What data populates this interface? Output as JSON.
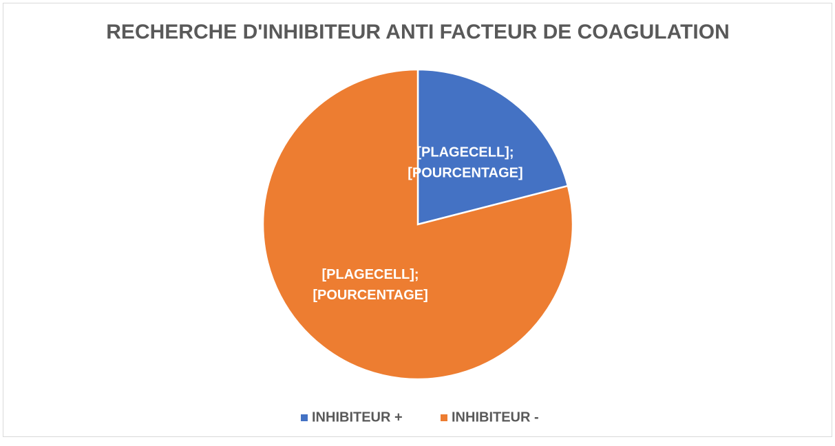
{
  "chart_data": {
    "type": "pie",
    "title": "RECHERCHE D'INHIBITEUR ANTI FACTEUR DE COAGULATION",
    "categories": [
      "INHIBITEUR +",
      "INHIBITEUR -"
    ],
    "values": [
      21,
      79
    ],
    "value_labels": [
      [
        "[PLAGECELL];",
        "[POURCENTAGE]"
      ],
      [
        "[PLAGECELL];",
        "[POURCENTAGE]"
      ]
    ],
    "colors": [
      "#4472c4",
      "#ed7d31"
    ],
    "legend": "bottom"
  }
}
